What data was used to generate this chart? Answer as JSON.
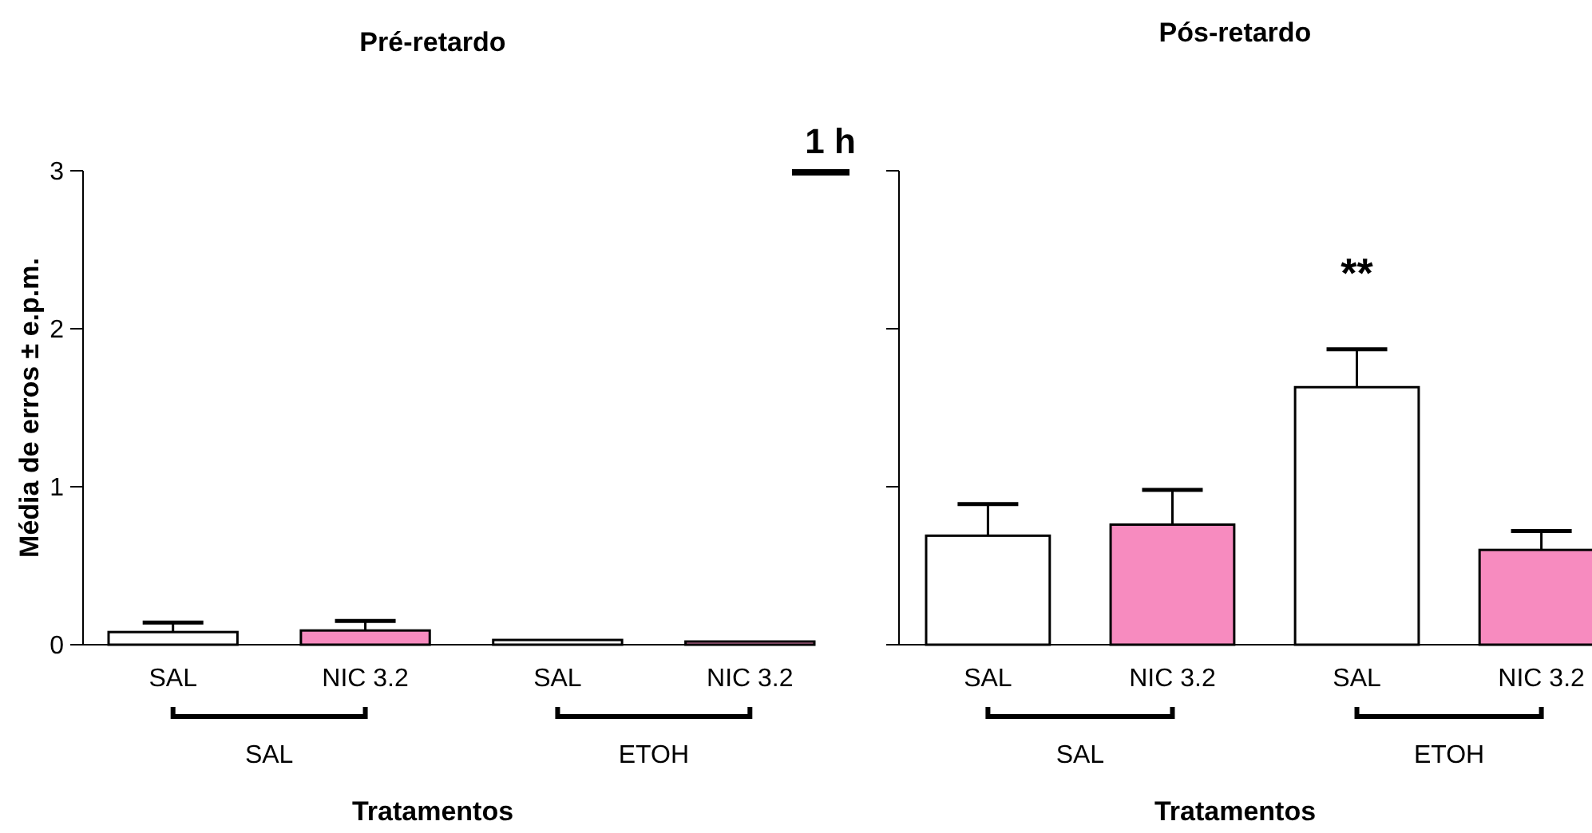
{
  "chart_data": [
    {
      "type": "bar",
      "title": "Pré-retardo",
      "xlabel": "Tratamentos",
      "ylabel": "Média de erros ± e.p.m.",
      "categories": [
        "SAL",
        "NIC 3.2",
        "SAL",
        "NIC 3.2"
      ],
      "values": [
        0.08,
        0.09,
        0.03,
        0.02
      ],
      "errors": [
        0.06,
        0.06,
        null,
        null
      ],
      "colors": [
        "#ffffff",
        "#f78bbf",
        "#ffffff",
        "#f78bbf"
      ],
      "ylim": [
        0,
        3
      ],
      "yticks": [
        0,
        1,
        2,
        3
      ],
      "annotations": [
        "SAL",
        "ETOH"
      ]
    },
    {
      "type": "bar",
      "title": "Pós-retardo",
      "xlabel": "Tratamentos",
      "categories": [
        "SAL",
        "NIC 3.2",
        "SAL",
        "NIC 3.2"
      ],
      "values": [
        0.69,
        0.76,
        1.63,
        0.6
      ],
      "errors": [
        0.2,
        0.22,
        0.24,
        0.12
      ],
      "colors": [
        "#ffffff",
        "#f78bbf",
        "#ffffff",
        "#f78bbf"
      ],
      "ylim": [
        0,
        3
      ],
      "yticks": [
        0,
        1,
        2,
        3
      ],
      "tick_labels": "x",
      "annotations": [
        "SAL",
        "ETOH",
        "**",
        "1 h"
      ]
    }
  ]
}
